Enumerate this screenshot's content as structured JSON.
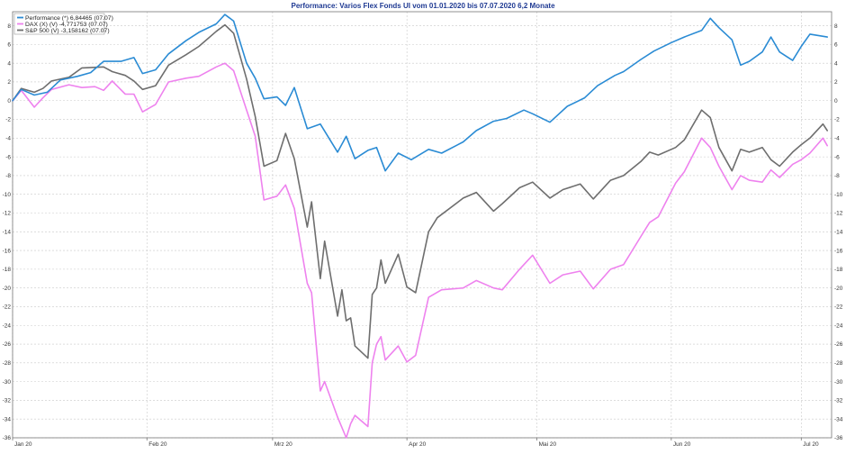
{
  "chart_data": {
    "type": "line",
    "title": "Performance: Varios Flex Fonds UI vom 01.01.2020 bis 07.07.2020 6,2 Monate",
    "xlabel": "",
    "ylabel": "",
    "ylim": [
      -36,
      9.5
    ],
    "yticks": [
      8,
      6,
      4,
      2,
      0,
      -2,
      -4,
      -6,
      -8,
      -10,
      -12,
      -14,
      -16,
      -18,
      -20,
      -22,
      -24,
      -26,
      -28,
      -30,
      -32,
      -34,
      -36
    ],
    "ytick_labels": [
      "8",
      "6",
      "4",
      "2",
      "0",
      "-2",
      "-4",
      "-6",
      "-8",
      "-10",
      "-12",
      "-14",
      "-16",
      "-18",
      "-20",
      "-22",
      "-24",
      "-26",
      "-28",
      "-30",
      "-32",
      "-34",
      "-36"
    ],
    "xlim": [
      "2020-01-01",
      "2020-07-08"
    ],
    "xticks": [
      "2020-01-01",
      "2020-02-01",
      "2020-03-01",
      "2020-04-01",
      "2020-05-01",
      "2020-06-01",
      "2020-07-01"
    ],
    "xtick_labels": [
      "Jan 20",
      "Feb 20",
      "Mrz 20",
      "Apr 20",
      "Mai 20",
      "Jun 20",
      "Jul 20"
    ],
    "grid": true,
    "legend_position": "top-left",
    "series": [
      {
        "name": "Performance (*) 6,84465 (07.07)",
        "color": "#2a8bd4",
        "points": [
          [
            "2020-01-01",
            0
          ],
          [
            "2020-01-03",
            1.2
          ],
          [
            "2020-01-06",
            0.6
          ],
          [
            "2020-01-09",
            0.9
          ],
          [
            "2020-01-12",
            2.2
          ],
          [
            "2020-01-16",
            2.6
          ],
          [
            "2020-01-19",
            3.0
          ],
          [
            "2020-01-22",
            4.2
          ],
          [
            "2020-01-26",
            4.2
          ],
          [
            "2020-01-29",
            4.6
          ],
          [
            "2020-01-31",
            2.9
          ],
          [
            "2020-02-03",
            3.3
          ],
          [
            "2020-02-06",
            5.0
          ],
          [
            "2020-02-10",
            6.4
          ],
          [
            "2020-02-13",
            7.3
          ],
          [
            "2020-02-17",
            8.2
          ],
          [
            "2020-02-19",
            9.2
          ],
          [
            "2020-02-21",
            8.5
          ],
          [
            "2020-02-24",
            4.0
          ],
          [
            "2020-02-26",
            2.4
          ],
          [
            "2020-02-28",
            0.2
          ],
          [
            "2020-03-02",
            0.4
          ],
          [
            "2020-03-04",
            -0.5
          ],
          [
            "2020-03-06",
            1.4
          ],
          [
            "2020-03-09",
            -3.0
          ],
          [
            "2020-03-12",
            -2.5
          ],
          [
            "2020-03-16",
            -5.5
          ],
          [
            "2020-03-18",
            -3.8
          ],
          [
            "2020-03-20",
            -6.2
          ],
          [
            "2020-03-23",
            -5.3
          ],
          [
            "2020-03-25",
            -5.0
          ],
          [
            "2020-03-27",
            -7.5
          ],
          [
            "2020-03-30",
            -5.6
          ],
          [
            "2020-04-02",
            -6.3
          ],
          [
            "2020-04-06",
            -5.2
          ],
          [
            "2020-04-09",
            -5.6
          ],
          [
            "2020-04-14",
            -4.4
          ],
          [
            "2020-04-17",
            -3.2
          ],
          [
            "2020-04-21",
            -2.2
          ],
          [
            "2020-04-24",
            -1.9
          ],
          [
            "2020-04-28",
            -1.0
          ],
          [
            "2020-04-30",
            -1.4
          ],
          [
            "2020-05-04",
            -2.3
          ],
          [
            "2020-05-08",
            -0.6
          ],
          [
            "2020-05-12",
            0.3
          ],
          [
            "2020-05-15",
            1.6
          ],
          [
            "2020-05-19",
            2.7
          ],
          [
            "2020-05-21",
            3.1
          ],
          [
            "2020-05-25",
            4.4
          ],
          [
            "2020-05-28",
            5.3
          ],
          [
            "2020-06-01",
            6.2
          ],
          [
            "2020-06-04",
            6.8
          ],
          [
            "2020-06-08",
            7.5
          ],
          [
            "2020-06-10",
            8.8
          ],
          [
            "2020-06-12",
            7.8
          ],
          [
            "2020-06-15",
            6.5
          ],
          [
            "2020-06-17",
            3.8
          ],
          [
            "2020-06-19",
            4.2
          ],
          [
            "2020-06-22",
            5.2
          ],
          [
            "2020-06-24",
            6.8
          ],
          [
            "2020-06-26",
            5.2
          ],
          [
            "2020-06-29",
            4.3
          ],
          [
            "2020-07-01",
            5.8
          ],
          [
            "2020-07-03",
            7.1
          ],
          [
            "2020-07-07",
            6.8
          ]
        ]
      },
      {
        "name": "DAX (X) (V) -4,771753 (07.07)",
        "color": "#ee82ee",
        "points": [
          [
            "2020-01-01",
            0
          ],
          [
            "2020-01-03",
            1.1
          ],
          [
            "2020-01-06",
            -0.7
          ],
          [
            "2020-01-08",
            0.3
          ],
          [
            "2020-01-10",
            1.2
          ],
          [
            "2020-01-14",
            1.7
          ],
          [
            "2020-01-17",
            1.4
          ],
          [
            "2020-01-20",
            1.5
          ],
          [
            "2020-01-22",
            1.1
          ],
          [
            "2020-01-24",
            2.1
          ],
          [
            "2020-01-27",
            0.7
          ],
          [
            "2020-01-29",
            0.7
          ],
          [
            "2020-01-31",
            -1.2
          ],
          [
            "2020-02-03",
            -0.4
          ],
          [
            "2020-02-06",
            2.0
          ],
          [
            "2020-02-10",
            2.4
          ],
          [
            "2020-02-13",
            2.6
          ],
          [
            "2020-02-17",
            3.6
          ],
          [
            "2020-02-19",
            4.0
          ],
          [
            "2020-02-21",
            3.2
          ],
          [
            "2020-02-24",
            -1.0
          ],
          [
            "2020-02-26",
            -3.8
          ],
          [
            "2020-02-28",
            -10.6
          ],
          [
            "2020-03-02",
            -10.2
          ],
          [
            "2020-03-04",
            -9.0
          ],
          [
            "2020-03-06",
            -11.5
          ],
          [
            "2020-03-09",
            -19.5
          ],
          [
            "2020-03-10",
            -20.5
          ],
          [
            "2020-03-12",
            -31.0
          ],
          [
            "2020-03-13",
            -30.0
          ],
          [
            "2020-03-16",
            -33.8
          ],
          [
            "2020-03-18",
            -36.0
          ],
          [
            "2020-03-19",
            -34.5
          ],
          [
            "2020-03-20",
            -33.6
          ],
          [
            "2020-03-23",
            -34.8
          ],
          [
            "2020-03-24",
            -28.0
          ],
          [
            "2020-03-25",
            -26.0
          ],
          [
            "2020-03-26",
            -25.2
          ],
          [
            "2020-03-27",
            -27.7
          ],
          [
            "2020-03-30",
            -26.2
          ],
          [
            "2020-04-01",
            -27.9
          ],
          [
            "2020-04-03",
            -27.2
          ],
          [
            "2020-04-06",
            -21.0
          ],
          [
            "2020-04-09",
            -20.2
          ],
          [
            "2020-04-14",
            -20.0
          ],
          [
            "2020-04-17",
            -19.2
          ],
          [
            "2020-04-21",
            -20.0
          ],
          [
            "2020-04-23",
            -20.2
          ],
          [
            "2020-04-27",
            -18.0
          ],
          [
            "2020-04-30",
            -16.5
          ],
          [
            "2020-05-04",
            -19.5
          ],
          [
            "2020-05-07",
            -18.6
          ],
          [
            "2020-05-11",
            -18.2
          ],
          [
            "2020-05-14",
            -20.1
          ],
          [
            "2020-05-18",
            -18.0
          ],
          [
            "2020-05-21",
            -17.5
          ],
          [
            "2020-05-25",
            -14.5
          ],
          [
            "2020-05-27",
            -13.0
          ],
          [
            "2020-05-29",
            -12.4
          ],
          [
            "2020-06-02",
            -8.8
          ],
          [
            "2020-06-04",
            -7.6
          ],
          [
            "2020-06-08",
            -4.0
          ],
          [
            "2020-06-10",
            -5.0
          ],
          [
            "2020-06-12",
            -7.0
          ],
          [
            "2020-06-15",
            -9.5
          ],
          [
            "2020-06-17",
            -8.0
          ],
          [
            "2020-06-19",
            -8.5
          ],
          [
            "2020-06-22",
            -8.7
          ],
          [
            "2020-06-24",
            -7.4
          ],
          [
            "2020-06-26",
            -8.2
          ],
          [
            "2020-06-29",
            -6.8
          ],
          [
            "2020-07-01",
            -6.3
          ],
          [
            "2020-07-03",
            -5.6
          ],
          [
            "2020-07-06",
            -4.0
          ],
          [
            "2020-07-07",
            -4.8
          ]
        ]
      },
      {
        "name": "S&P 500 (V) -3,158162 (07.07)",
        "color": "#6e6e6e",
        "points": [
          [
            "2020-01-01",
            0
          ],
          [
            "2020-01-03",
            1.3
          ],
          [
            "2020-01-06",
            0.9
          ],
          [
            "2020-01-08",
            1.3
          ],
          [
            "2020-01-10",
            2.1
          ],
          [
            "2020-01-14",
            2.5
          ],
          [
            "2020-01-17",
            3.5
          ],
          [
            "2020-01-22",
            3.6
          ],
          [
            "2020-01-24",
            3.1
          ],
          [
            "2020-01-27",
            2.7
          ],
          [
            "2020-01-29",
            2.1
          ],
          [
            "2020-01-31",
            1.2
          ],
          [
            "2020-02-03",
            1.6
          ],
          [
            "2020-02-06",
            3.8
          ],
          [
            "2020-02-10",
            4.9
          ],
          [
            "2020-02-13",
            5.8
          ],
          [
            "2020-02-17",
            7.4
          ],
          [
            "2020-02-19",
            8.1
          ],
          [
            "2020-02-21",
            7.2
          ],
          [
            "2020-02-24",
            2.3
          ],
          [
            "2020-02-26",
            -1.7
          ],
          [
            "2020-02-28",
            -7.0
          ],
          [
            "2020-03-02",
            -6.4
          ],
          [
            "2020-03-04",
            -3.5
          ],
          [
            "2020-03-06",
            -6.2
          ],
          [
            "2020-03-09",
            -13.5
          ],
          [
            "2020-03-10",
            -10.8
          ],
          [
            "2020-03-12",
            -19.0
          ],
          [
            "2020-03-13",
            -15.0
          ],
          [
            "2020-03-16",
            -23.0
          ],
          [
            "2020-03-17",
            -20.2
          ],
          [
            "2020-03-18",
            -23.5
          ],
          [
            "2020-03-19",
            -23.2
          ],
          [
            "2020-03-20",
            -26.2
          ],
          [
            "2020-03-23",
            -27.5
          ],
          [
            "2020-03-24",
            -20.7
          ],
          [
            "2020-03-25",
            -20.0
          ],
          [
            "2020-03-26",
            -17.0
          ],
          [
            "2020-03-27",
            -19.5
          ],
          [
            "2020-03-30",
            -16.4
          ],
          [
            "2020-04-01",
            -19.9
          ],
          [
            "2020-04-03",
            -20.5
          ],
          [
            "2020-04-06",
            -14.0
          ],
          [
            "2020-04-08",
            -12.5
          ],
          [
            "2020-04-14",
            -10.4
          ],
          [
            "2020-04-17",
            -9.8
          ],
          [
            "2020-04-21",
            -11.8
          ],
          [
            "2020-04-23",
            -11.0
          ],
          [
            "2020-04-27",
            -9.3
          ],
          [
            "2020-04-30",
            -8.7
          ],
          [
            "2020-05-04",
            -10.4
          ],
          [
            "2020-05-07",
            -9.5
          ],
          [
            "2020-05-11",
            -8.9
          ],
          [
            "2020-05-14",
            -10.5
          ],
          [
            "2020-05-18",
            -8.5
          ],
          [
            "2020-05-21",
            -8.0
          ],
          [
            "2020-05-25",
            -6.5
          ],
          [
            "2020-05-27",
            -5.5
          ],
          [
            "2020-05-29",
            -5.8
          ],
          [
            "2020-06-02",
            -5.0
          ],
          [
            "2020-06-04",
            -4.2
          ],
          [
            "2020-06-08",
            -1.0
          ],
          [
            "2020-06-10",
            -1.8
          ],
          [
            "2020-06-12",
            -5.0
          ],
          [
            "2020-06-15",
            -7.5
          ],
          [
            "2020-06-17",
            -5.2
          ],
          [
            "2020-06-19",
            -5.5
          ],
          [
            "2020-06-22",
            -5.0
          ],
          [
            "2020-06-24",
            -6.3
          ],
          [
            "2020-06-26",
            -7.0
          ],
          [
            "2020-06-29",
            -5.5
          ],
          [
            "2020-07-01",
            -4.7
          ],
          [
            "2020-07-03",
            -4.0
          ],
          [
            "2020-07-06",
            -2.5
          ],
          [
            "2020-07-07",
            -3.2
          ]
        ]
      }
    ]
  }
}
